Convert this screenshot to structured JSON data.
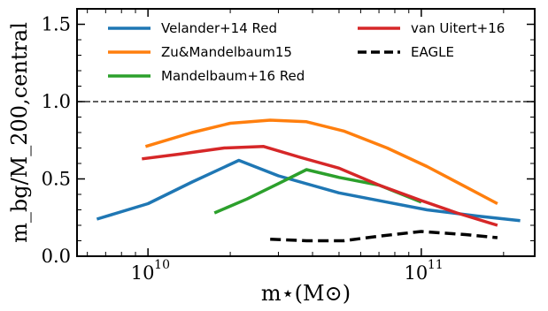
{
  "chart_data": {
    "type": "line",
    "xlabel": "m⋆(M⊙)",
    "ylabel": "m_bg/M_200,central",
    "xscale": "log",
    "xlim": [
      5500000000.0,
      260000000000.0
    ],
    "ylim": [
      0,
      1.6
    ],
    "yticks": [
      0.0,
      0.5,
      1.0,
      1.5
    ],
    "ytick_labels": [
      "0.0",
      "0.5",
      "1.0",
      "1.5"
    ],
    "xticks": [
      10000000000.0,
      100000000000.0
    ],
    "xtick_labels": [
      "10",
      "10"
    ],
    "xtick_exponents": [
      "10",
      "11"
    ],
    "reference_line": {
      "y": 1.0,
      "style": "dashed",
      "color": "#000000"
    },
    "legend_position": "top",
    "series": [
      {
        "name": "Velander+14 Red",
        "color": "#1f77b4",
        "style": "solid",
        "x": [
          6500000000.0,
          10000000000.0,
          14500000000.0,
          21500000000.0,
          30000000000.0,
          50000000000.0,
          75000000000.0,
          105000000000.0,
          160000000000.0,
          230000000000.0
        ],
        "y": [
          0.24,
          0.34,
          0.48,
          0.62,
          0.52,
          0.41,
          0.35,
          0.3,
          0.26,
          0.23
        ]
      },
      {
        "name": "Zu&Mandelbaum15",
        "color": "#ff7f0e",
        "style": "solid",
        "x": [
          9800000000.0,
          14500000000.0,
          20000000000.0,
          28000000000.0,
          38000000000.0,
          52000000000.0,
          75000000000.0,
          105000000000.0,
          145000000000.0,
          190000000000.0
        ],
        "y": [
          0.71,
          0.8,
          0.86,
          0.88,
          0.87,
          0.81,
          0.7,
          0.58,
          0.45,
          0.34
        ]
      },
      {
        "name": "Mandelbaum+16 Red",
        "color": "#2ca02c",
        "style": "solid",
        "x": [
          17500000000.0,
          23000000000.0,
          30000000000.0,
          38000000000.0,
          50000000000.0,
          70000000000.0,
          100000000000.0
        ],
        "y": [
          0.28,
          0.37,
          0.47,
          0.56,
          0.51,
          0.46,
          0.35
        ]
      },
      {
        "name": "van Uitert+16",
        "color": "#d62728",
        "style": "solid",
        "x": [
          9500000000.0,
          13000000000.0,
          19000000000.0,
          26500000000.0,
          36000000000.0,
          50000000000.0,
          70000000000.0,
          100000000000.0,
          135000000000.0,
          190000000000.0
        ],
        "y": [
          0.63,
          0.66,
          0.7,
          0.71,
          0.64,
          0.57,
          0.46,
          0.36,
          0.28,
          0.2
        ]
      },
      {
        "name": "EAGLE",
        "color": "#000000",
        "style": "dashed",
        "x": [
          28000000000.0,
          38000000000.0,
          52000000000.0,
          70000000000.0,
          100000000000.0,
          145000000000.0,
          190000000000.0
        ],
        "y": [
          0.11,
          0.1,
          0.1,
          0.13,
          0.16,
          0.14,
          0.12
        ]
      }
    ]
  }
}
